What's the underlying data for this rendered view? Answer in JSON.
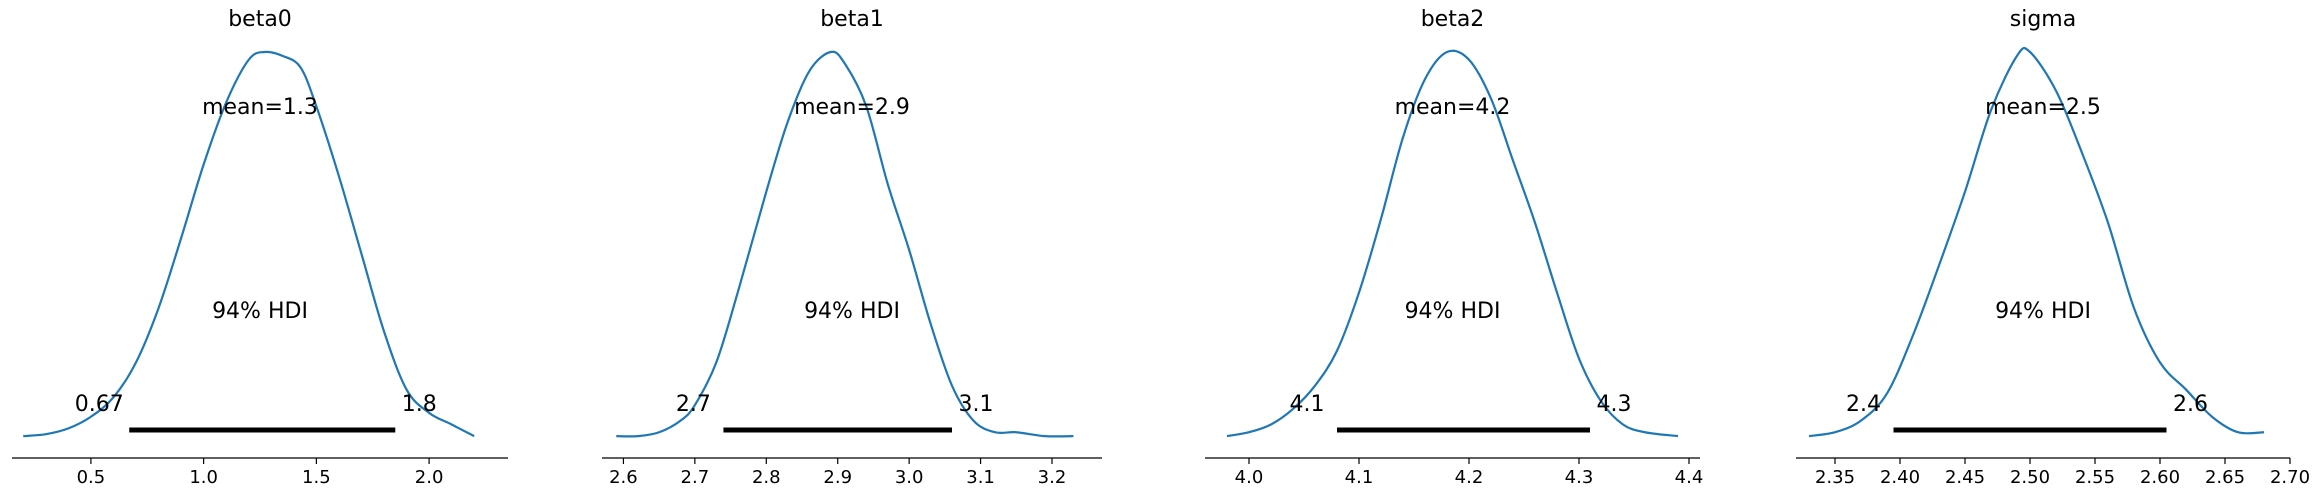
{
  "chart_data": [
    {
      "type": "area",
      "title": "beta0",
      "mean_label": "mean=1.3",
      "hdi_label": "94% HDI",
      "hdi": [
        0.67,
        1.85
      ],
      "hdi_low_label": "0.67",
      "hdi_high_label": "1.8",
      "xlim": [
        0.15,
        2.35
      ],
      "ticks": [
        0.5,
        1.0,
        1.5,
        2.0
      ],
      "tick_labels": [
        "0.5",
        "1.0",
        "1.5",
        "2.0"
      ],
      "density": {
        "x": [
          0.2,
          0.3,
          0.4,
          0.5,
          0.6,
          0.7,
          0.8,
          0.9,
          1.0,
          1.1,
          1.2,
          1.27,
          1.35,
          1.43,
          1.5,
          1.6,
          1.7,
          1.8,
          1.9,
          2.0,
          2.1,
          2.2
        ],
        "y": [
          0.01,
          0.015,
          0.03,
          0.06,
          0.11,
          0.2,
          0.34,
          0.52,
          0.71,
          0.87,
          0.98,
          1.0,
          0.99,
          0.96,
          0.86,
          0.68,
          0.48,
          0.28,
          0.13,
          0.07,
          0.04,
          0.01
        ]
      }
    },
    {
      "type": "area",
      "title": "beta1",
      "mean_label": "mean=2.9",
      "hdi_label": "94% HDI",
      "hdi": [
        2.74,
        3.06
      ],
      "hdi_low_label": "2.7",
      "hdi_high_label": "3.1",
      "xlim": [
        2.57,
        3.27
      ],
      "ticks": [
        2.6,
        2.7,
        2.8,
        2.9,
        3.0,
        3.1,
        3.2
      ],
      "tick_labels": [
        "2.6",
        "2.7",
        "2.8",
        "2.9",
        "3.0",
        "3.1",
        "3.2"
      ],
      "density": {
        "x": [
          2.59,
          2.62,
          2.65,
          2.68,
          2.7,
          2.73,
          2.76,
          2.8,
          2.83,
          2.86,
          2.89,
          2.91,
          2.94,
          2.97,
          3.0,
          3.03,
          3.06,
          3.09,
          3.12,
          3.15,
          3.19,
          3.23
        ],
        "y": [
          0.01,
          0.01,
          0.02,
          0.05,
          0.09,
          0.2,
          0.38,
          0.64,
          0.82,
          0.95,
          1.0,
          0.97,
          0.86,
          0.66,
          0.49,
          0.3,
          0.14,
          0.05,
          0.02,
          0.02,
          0.01,
          0.01
        ]
      }
    },
    {
      "type": "area",
      "title": "beta2",
      "mean_label": "mean=4.2",
      "hdi_label": "94% HDI",
      "hdi": [
        4.08,
        4.31
      ],
      "hdi_low_label": "4.1",
      "hdi_high_label": "4.3",
      "xlim": [
        3.96,
        4.41
      ],
      "ticks": [
        4.0,
        4.1,
        4.2,
        4.3,
        4.4
      ],
      "tick_labels": [
        "4.0",
        "4.1",
        "4.2",
        "4.3",
        "4.4"
      ],
      "density": {
        "x": [
          3.98,
          4.0,
          4.02,
          4.04,
          4.06,
          4.08,
          4.1,
          4.12,
          4.14,
          4.16,
          4.18,
          4.2,
          4.22,
          4.24,
          4.26,
          4.28,
          4.3,
          4.32,
          4.34,
          4.36,
          4.39
        ],
        "y": [
          0.01,
          0.02,
          0.04,
          0.08,
          0.14,
          0.23,
          0.38,
          0.57,
          0.78,
          0.93,
          1.0,
          0.98,
          0.88,
          0.72,
          0.56,
          0.38,
          0.21,
          0.1,
          0.04,
          0.02,
          0.01
        ]
      }
    },
    {
      "type": "area",
      "title": "sigma",
      "mean_label": "mean=2.5",
      "hdi_label": "94% HDI",
      "hdi": [
        2.395,
        2.605
      ],
      "hdi_low_label": "2.4",
      "hdi_high_label": "2.6",
      "xlim": [
        2.32,
        2.7
      ],
      "ticks": [
        2.35,
        2.4,
        2.45,
        2.5,
        2.55,
        2.6,
        2.65,
        2.7
      ],
      "tick_labels": [
        "2.35",
        "2.40",
        "2.45",
        "2.50",
        "2.55",
        "2.60",
        "2.65",
        "2.70"
      ],
      "density": {
        "x": [
          2.33,
          2.35,
          2.37,
          2.39,
          2.41,
          2.43,
          2.45,
          2.47,
          2.49,
          2.5,
          2.52,
          2.54,
          2.56,
          2.58,
          2.6,
          2.62,
          2.64,
          2.66,
          2.68
        ],
        "y": [
          0.01,
          0.02,
          0.05,
          0.12,
          0.27,
          0.45,
          0.64,
          0.85,
          0.99,
          1.0,
          0.9,
          0.74,
          0.56,
          0.34,
          0.2,
          0.13,
          0.06,
          0.02,
          0.02
        ]
      }
    }
  ],
  "colors": {
    "density_line": "#1f77b4",
    "hdi_bar": "#000000",
    "axis": "#000000"
  }
}
